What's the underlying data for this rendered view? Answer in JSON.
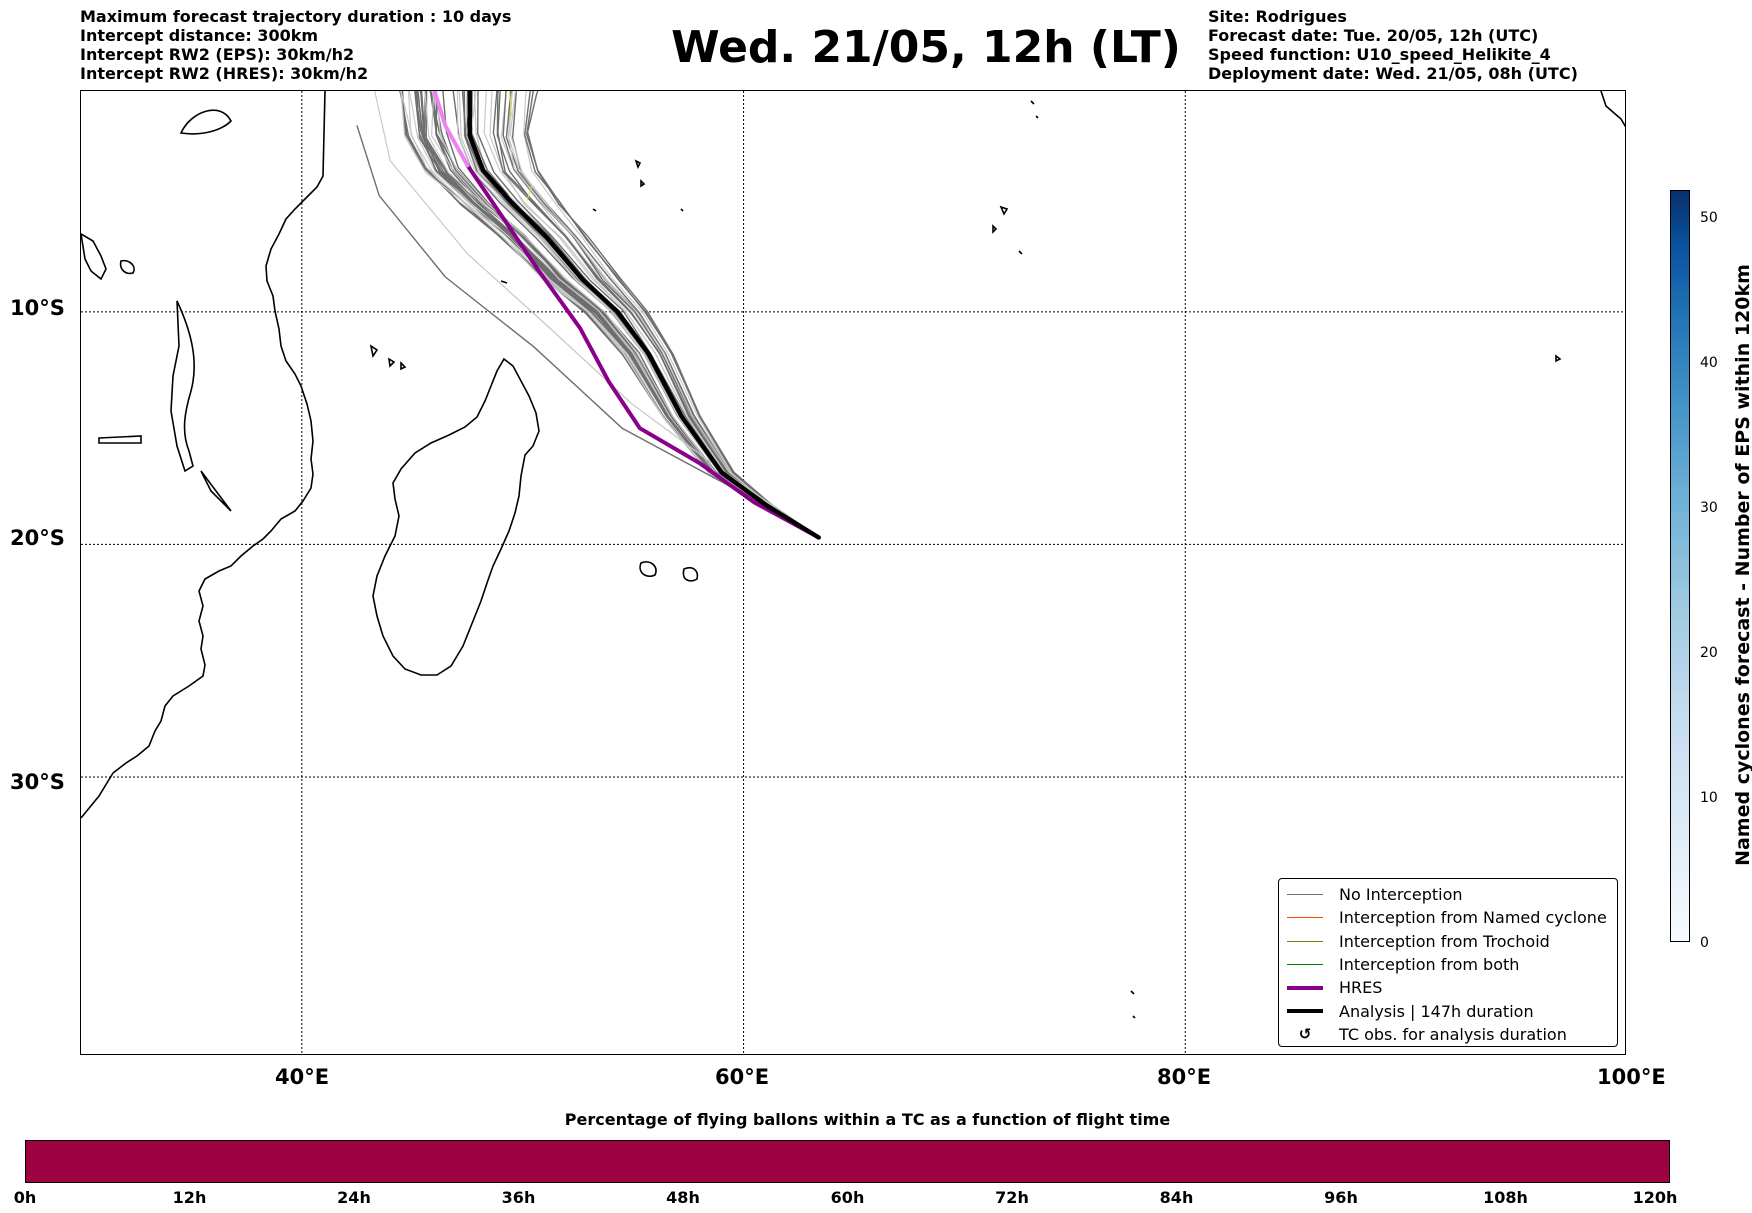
{
  "header_left": [
    "Maximum forecast trajectory duration : 10 days",
    "Intercept distance: 300km",
    "Intercept RW2 (EPS):  30km/h2",
    "Intercept RW2 (HRES): 30km/h2"
  ],
  "title": "Wed. 21/05, 12h (LT)",
  "header_right": [
    "Site: Rodrigues",
    "Forecast date: Tue. 20/05, 12h (UTC)",
    "Speed function: U10_speed_Helikite_4",
    "Deployment date: Wed. 21/05, 08h (UTC)"
  ],
  "map": {
    "lon_labels": [
      "40°E",
      "60°E",
      "80°E",
      "100°E"
    ],
    "lat_labels": [
      "10°S",
      "20°S",
      "30°S"
    ],
    "lon_lines": [
      40,
      60,
      80
    ],
    "lat_lines": [
      -10,
      -20,
      -30
    ],
    "extent": {
      "lon_min": 30,
      "lon_max": 100,
      "lat_min": -42,
      "lat_max": -0.5
    },
    "deployment_site": {
      "lon": 63.4,
      "lat": -19.7
    },
    "colors": {
      "no_interception": "#6e6e6e",
      "no_interception_light": "#c8c8c8",
      "hres": "#8b008b",
      "hres_light": "#ee82ee",
      "analysis": "#000000",
      "named_cyclone": "#ff4500",
      "trochoid": "#808000",
      "both": "#008000"
    },
    "analysis_track": [
      [
        63.4,
        -19.7
      ],
      [
        61,
        -18.3
      ],
      [
        59,
        -16.9
      ],
      [
        57.2,
        -14.5
      ],
      [
        55.7,
        -11.8
      ],
      [
        54.3,
        -10
      ],
      [
        52.7,
        -8.6
      ],
      [
        51.1,
        -6.8
      ],
      [
        49.5,
        -5.3
      ],
      [
        48.2,
        -3.9
      ],
      [
        47.6,
        -2.4
      ],
      [
        47.6,
        -0.5
      ]
    ],
    "hres_track": [
      [
        63.4,
        -19.7
      ],
      [
        60.5,
        -18.2
      ],
      [
        58,
        -16.5
      ],
      [
        55.3,
        -15
      ],
      [
        53.9,
        -13
      ],
      [
        52.6,
        -10.7
      ],
      [
        50.7,
        -8.2
      ],
      [
        49,
        -5.8
      ],
      [
        47.5,
        -3.7
      ],
      [
        46.5,
        -2
      ],
      [
        46,
        -0.5
      ]
    ]
  },
  "legend": [
    {
      "label": "No Interception",
      "style": "thin",
      "color": "#6e6e6e"
    },
    {
      "label": "Interception from Named cyclone",
      "style": "thin",
      "color": "#ff4500"
    },
    {
      "label": "Interception from Trochoid",
      "style": "thin",
      "color": "#808000"
    },
    {
      "label": "Interception from both",
      "style": "thin",
      "color": "#008000"
    },
    {
      "label": "HRES",
      "style": "thick",
      "color": "#8b008b"
    },
    {
      "label": "Analysis | 147h duration",
      "style": "thick",
      "color": "#000000"
    },
    {
      "label": "TC obs. for analysis duration",
      "style": "symbol",
      "symbol": "↺"
    }
  ],
  "colorbar_vertical": {
    "label": "Named cyclones forecast - Number of EPS within 120km",
    "ticks": [
      "0",
      "10",
      "20",
      "30",
      "40",
      "50"
    ],
    "tick_values": [
      0,
      10,
      20,
      30,
      40,
      50
    ],
    "max": 52
  },
  "colorbar_horizontal": {
    "title": "Percentage of flying ballons within a TC as a function of flight time",
    "ticks": [
      "0h",
      "12h",
      "24h",
      "36h",
      "48h",
      "60h",
      "72h",
      "84h",
      "96h",
      "108h",
      "120h"
    ],
    "tick_hours": [
      0,
      12,
      24,
      36,
      48,
      60,
      72,
      84,
      96,
      108,
      120
    ],
    "color": "#9e0142"
  }
}
